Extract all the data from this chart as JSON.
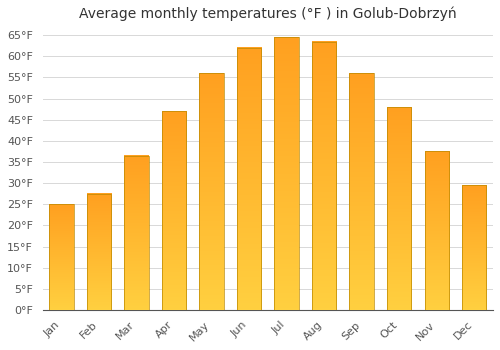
{
  "title": "Average monthly temperatures (°F ) in Golub-Dobrzyń",
  "months": [
    "Jan",
    "Feb",
    "Mar",
    "Apr",
    "May",
    "Jun",
    "Jul",
    "Aug",
    "Sep",
    "Oct",
    "Nov",
    "Dec"
  ],
  "values": [
    25.0,
    27.5,
    36.5,
    47.0,
    56.0,
    62.0,
    64.5,
    63.5,
    56.0,
    48.0,
    37.5,
    29.5
  ],
  "ylim": [
    0,
    67
  ],
  "yticks": [
    0,
    5,
    10,
    15,
    20,
    25,
    30,
    35,
    40,
    45,
    50,
    55,
    60,
    65
  ],
  "bar_color_bottom": "#FFD040",
  "bar_color_top": "#FFA020",
  "bar_edge_color": "#BB8800",
  "grid_color": "#d8d8d8",
  "background_color": "#ffffff",
  "title_fontsize": 10,
  "tick_fontsize": 8,
  "bar_width": 0.65
}
